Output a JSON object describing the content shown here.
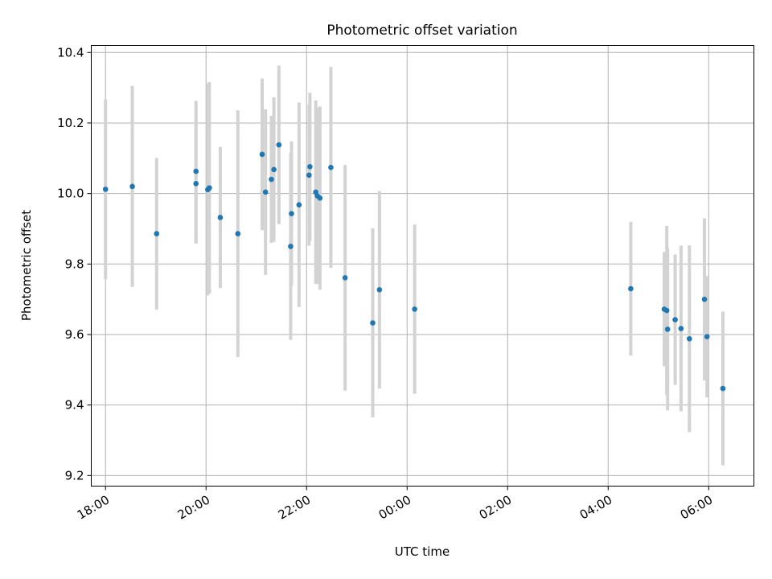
{
  "chart_data": {
    "type": "scatter",
    "title": "Photometric offset variation",
    "xlabel": "UTC time",
    "ylabel": "Photometric offset",
    "x_ticks": [
      "18:00",
      "20:00",
      "22:00",
      "00:00",
      "02:00",
      "04:00",
      "06:00"
    ],
    "y_ticks": [
      "9.2",
      "9.4",
      "9.6",
      "9.8",
      "10.0",
      "10.2",
      "10.4"
    ],
    "xlim": [
      "17:43",
      "06:54"
    ],
    "ylim": [
      9.17,
      10.42
    ],
    "grid": true,
    "marker_color": "#1f77b4",
    "errorbar_color": "#d3d3d3",
    "points": [
      {
        "t": "18:00",
        "y": 10.012,
        "err": 0.255
      },
      {
        "t": "18:32",
        "y": 10.02,
        "err": 0.285
      },
      {
        "t": "19:01",
        "y": 9.886,
        "err": 0.215
      },
      {
        "t": "19:48",
        "y": 10.063,
        "err": 0.2
      },
      {
        "t": "19:48",
        "y": 10.028,
        "err": 0.17
      },
      {
        "t": "20:02",
        "y": 10.011,
        "err": 0.3
      },
      {
        "t": "20:04",
        "y": 10.016,
        "err": 0.3
      },
      {
        "t": "20:17",
        "y": 9.932,
        "err": 0.2
      },
      {
        "t": "20:38",
        "y": 9.886,
        "err": 0.35
      },
      {
        "t": "21:07",
        "y": 10.111,
        "err": 0.215
      },
      {
        "t": "21:11",
        "y": 10.004,
        "err": 0.235
      },
      {
        "t": "21:18",
        "y": 10.04,
        "err": 0.18
      },
      {
        "t": "21:21",
        "y": 10.068,
        "err": 0.205
      },
      {
        "t": "21:27",
        "y": 10.138,
        "err": 0.225
      },
      {
        "t": "21:41",
        "y": 9.85,
        "err": 0.265
      },
      {
        "t": "21:42",
        "y": 9.943,
        "err": 0.205
      },
      {
        "t": "21:51",
        "y": 9.968,
        "err": 0.29
      },
      {
        "t": "22:03",
        "y": 10.052,
        "err": 0.2
      },
      {
        "t": "22:04",
        "y": 10.076,
        "err": 0.21
      },
      {
        "t": "22:11",
        "y": 10.004,
        "err": 0.26
      },
      {
        "t": "22:13",
        "y": 9.993,
        "err": 0.25
      },
      {
        "t": "22:16",
        "y": 9.987,
        "err": 0.26
      },
      {
        "t": "22:29",
        "y": 10.074,
        "err": 0.285
      },
      {
        "t": "22:46",
        "y": 9.761,
        "err": 0.32
      },
      {
        "t": "23:19",
        "y": 9.633,
        "err": 0.268
      },
      {
        "t": "23:27",
        "y": 9.727,
        "err": 0.28
      },
      {
        "t": "00:09",
        "y": 9.672,
        "err": 0.24
      },
      {
        "t": "04:27",
        "y": 9.73,
        "err": 0.19
      },
      {
        "t": "05:07",
        "y": 9.672,
        "err": 0.162
      },
      {
        "t": "05:10",
        "y": 9.668,
        "err": 0.24
      },
      {
        "t": "05:11",
        "y": 9.615,
        "err": 0.23
      },
      {
        "t": "05:20",
        "y": 9.642,
        "err": 0.185
      },
      {
        "t": "05:27",
        "y": 9.617,
        "err": 0.235
      },
      {
        "t": "05:37",
        "y": 9.588,
        "err": 0.265
      },
      {
        "t": "05:55",
        "y": 9.7,
        "err": 0.23
      },
      {
        "t": "05:58",
        "y": 9.594,
        "err": 0.172
      },
      {
        "t": "06:17",
        "y": 9.447,
        "err": 0.218
      }
    ]
  }
}
